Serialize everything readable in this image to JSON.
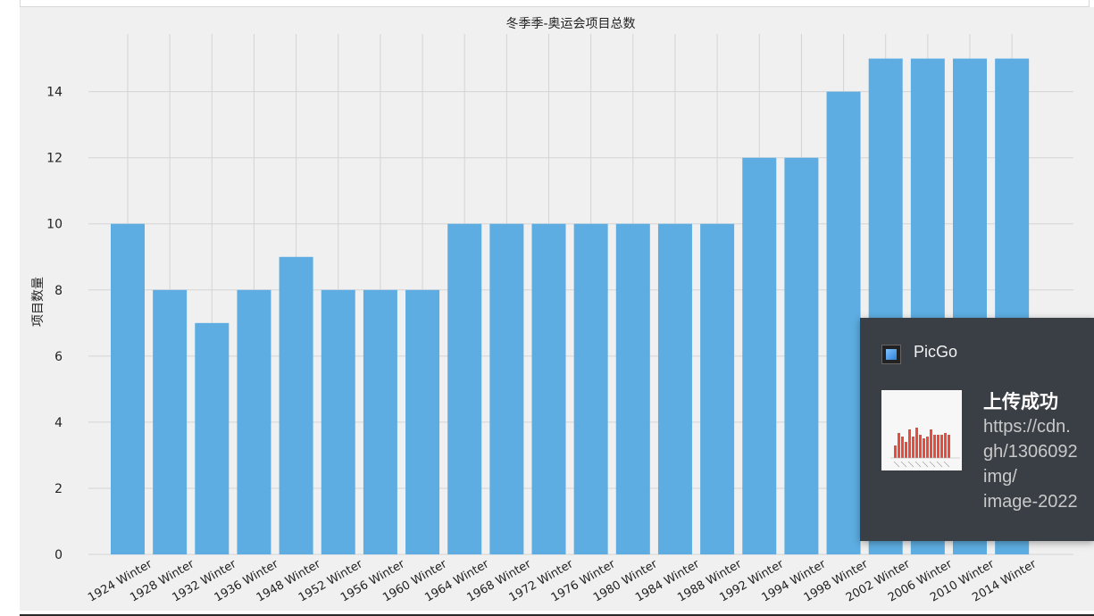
{
  "chart_data": {
    "type": "bar",
    "title": "冬季季-奥运会项目总数",
    "xlabel": "",
    "ylabel": "项目数量",
    "ylim": [
      0,
      15.8
    ],
    "yticks": [
      0,
      2,
      4,
      6,
      8,
      10,
      12,
      14
    ],
    "grid": true,
    "bar_color": "#5dade2",
    "categories": [
      "1924 Winter",
      "1928 Winter",
      "1932 Winter",
      "1936 Winter",
      "1948 Winter",
      "1952 Winter",
      "1956 Winter",
      "1960 Winter",
      "1964 Winter",
      "1968 Winter",
      "1972 Winter",
      "1976 Winter",
      "1980 Winter",
      "1984 Winter",
      "1988 Winter",
      "1992 Winter",
      "1994 Winter",
      "1998 Winter",
      "2002 Winter",
      "2006 Winter",
      "2010 Winter",
      "2014 Winter"
    ],
    "values": [
      10,
      8,
      7,
      8,
      9,
      8,
      8,
      8,
      10,
      10,
      10,
      10,
      10,
      10,
      10,
      12,
      12,
      14,
      15,
      15,
      15,
      15
    ]
  },
  "notification": {
    "app_name": "PicGo",
    "title": "上传成功",
    "body_lines": [
      "https://cdn.",
      "gh/1306092",
      "img/",
      "image-2022"
    ]
  }
}
